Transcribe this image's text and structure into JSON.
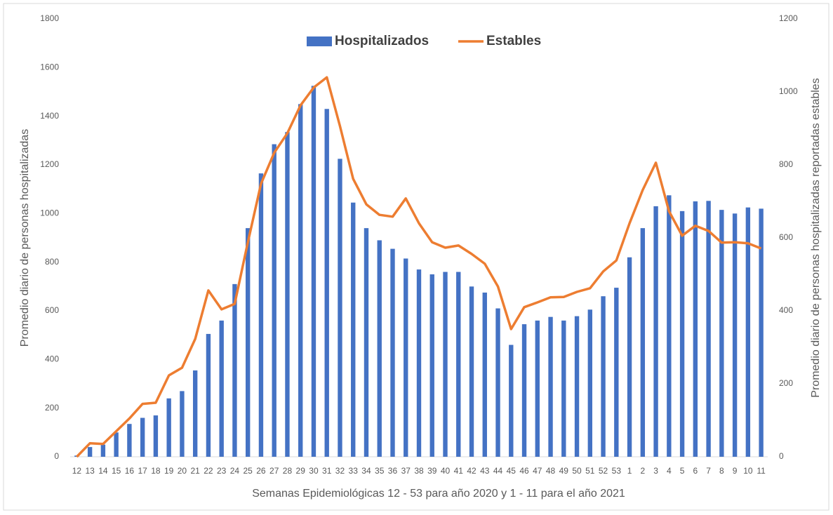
{
  "chart_data": {
    "type": "bar-line",
    "x_label": "Semanas Epidemiológicas 12 - 53 para año 2020 y 1 - 11 para el año 2021",
    "y_label": "Promedio diario de personas hospitalizadas",
    "y2_label": "Promedio diario de personas hospitalizadas reportadas estables",
    "categories": [
      "12",
      "13",
      "14",
      "15",
      "16",
      "17",
      "18",
      "19",
      "20",
      "21",
      "22",
      "23",
      "24",
      "25",
      "26",
      "27",
      "28",
      "29",
      "30",
      "31",
      "32",
      "33",
      "34",
      "35",
      "36",
      "37",
      "38",
      "39",
      "40",
      "41",
      "42",
      "43",
      "44",
      "45",
      "46",
      "47",
      "48",
      "49",
      "50",
      "51",
      "52",
      "53",
      "1",
      "2",
      "3",
      "4",
      "5",
      "6",
      "7",
      "8",
      "9",
      "10",
      "11"
    ],
    "series": [
      {
        "name": "Hospitalizados",
        "type": "bar",
        "color": "#4472c4",
        "values": [
          5,
          40,
          50,
          100,
          135,
          160,
          170,
          240,
          270,
          355,
          505,
          560,
          710,
          940,
          1165,
          1285,
          1335,
          1450,
          1525,
          1430,
          1225,
          1045,
          940,
          890,
          855,
          815,
          770,
          750,
          760,
          760,
          700,
          675,
          610,
          460,
          545,
          560,
          575,
          560,
          578,
          605,
          660,
          695,
          820,
          940,
          1030,
          1075,
          1010,
          1050,
          1052,
          1015,
          1000,
          1025,
          1020
        ]
      },
      {
        "name": "Estables",
        "type": "line",
        "axis": "y2",
        "color": "#ed7d31",
        "values": [
          0,
          37,
          35,
          70,
          105,
          145,
          148,
          223,
          244,
          323,
          456,
          404,
          419,
          588,
          748,
          833,
          887,
          963,
          1012,
          1040,
          906,
          762,
          692,
          663,
          658,
          708,
          640,
          588,
          573,
          579,
          556,
          529,
          467,
          350,
          410,
          423,
          437,
          438,
          452,
          462,
          508,
          538,
          640,
          731,
          806,
          673,
          606,
          633,
          619,
          587,
          588,
          585,
          571
        ]
      }
    ],
    "ylim": [
      0,
      1800
    ],
    "yticks": [
      0,
      200,
      400,
      600,
      800,
      1000,
      1200,
      1400,
      1600,
      1800
    ],
    "y2lim": [
      0,
      1200
    ],
    "y2ticks": [
      0,
      200,
      400,
      600,
      800,
      1000,
      1200
    ],
    "legend": "top",
    "grid": false
  }
}
